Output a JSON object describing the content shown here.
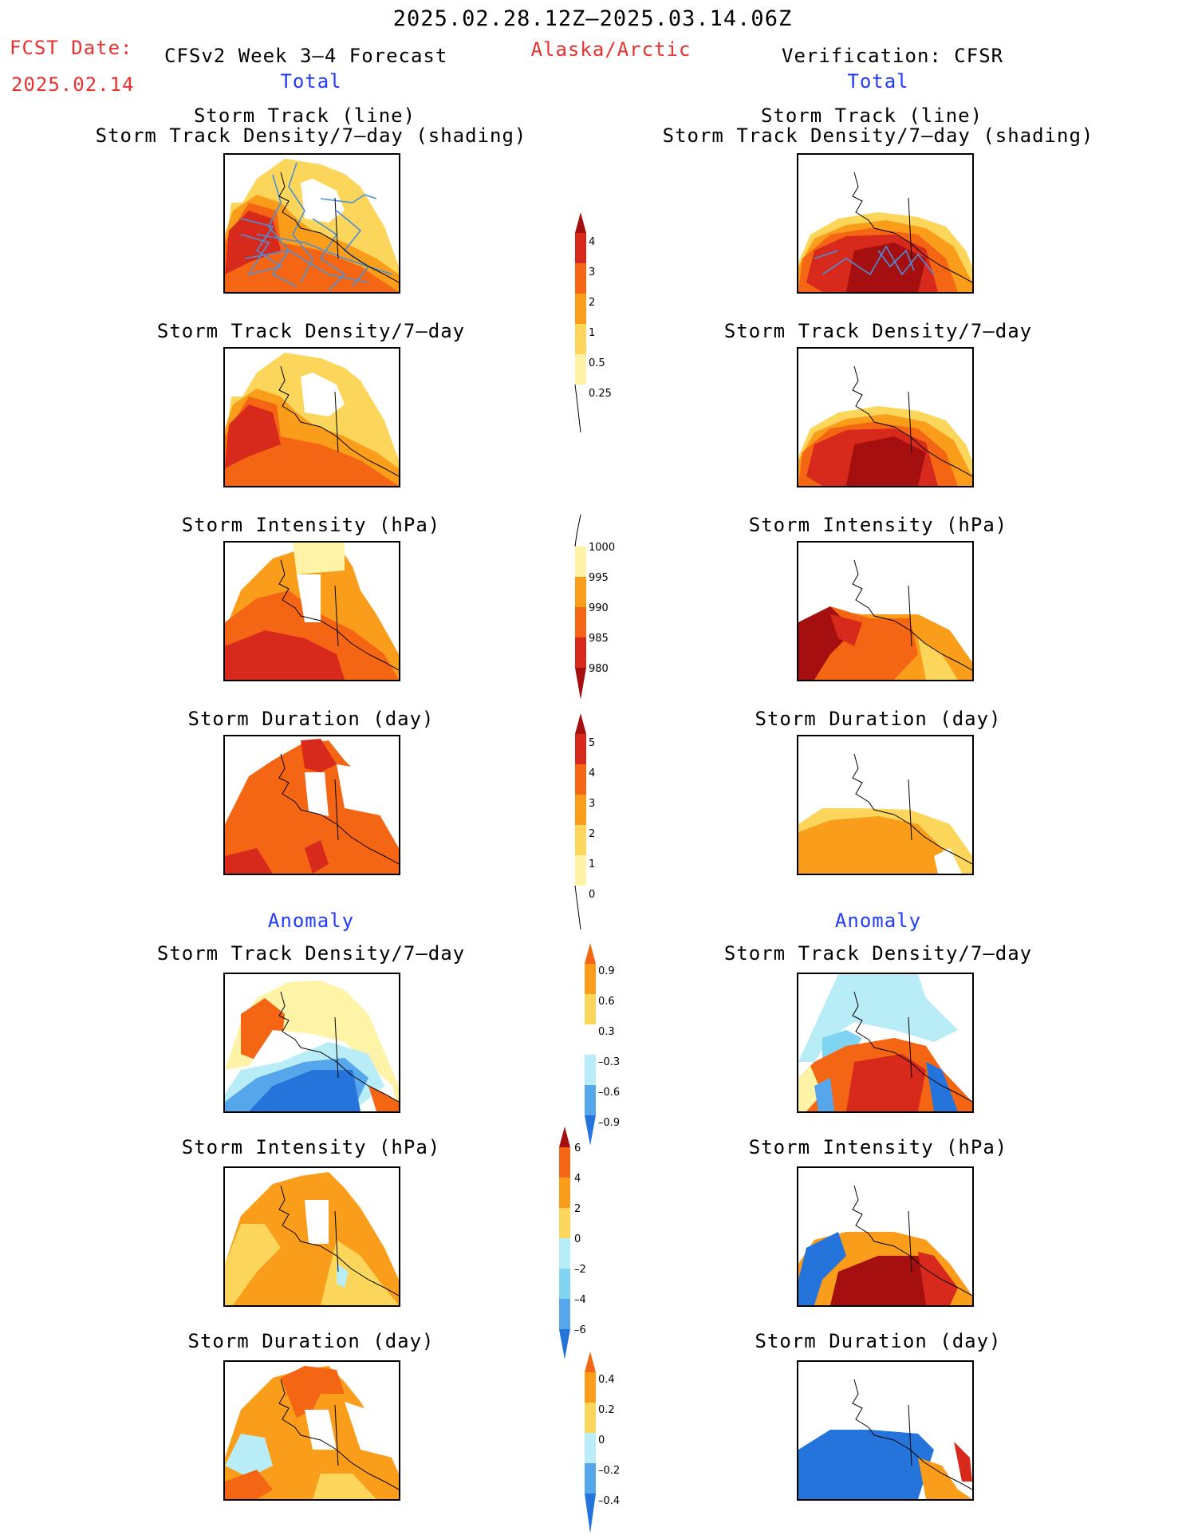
{
  "header": {
    "date_range": "2025.02.28.12Z–2025.03.14.06Z",
    "fcst_label": "FCST Date:",
    "fcst_date": "2025.02.14",
    "left_title": "CFSv2 Week 3–4 Forecast",
    "region": "Alaska/Arctic",
    "right_title": "Verification: CFSR",
    "left_total": "Total",
    "right_total": "Total"
  },
  "section_labels": {
    "anomaly_left": "Anomaly",
    "anomaly_right": "Anomaly"
  },
  "panels": {
    "track_line_1": "Storm Track (line)",
    "track_line_2": "Storm Track Density/7–day (shading)",
    "density": "Storm Track Density/7–day",
    "intensity": "Storm Intensity (hPa)",
    "duration": "Storm Duration (day)"
  },
  "colorbars": {
    "density": [
      "4",
      "3",
      "2",
      "1",
      "0.5",
      "0.25"
    ],
    "intensity": [
      "1000",
      "995",
      "990",
      "985",
      "980"
    ],
    "duration": [
      "5",
      "4",
      "3",
      "2",
      "1",
      "0"
    ],
    "anom_density": [
      "0.9",
      "0.6",
      "0.3",
      "–0.3",
      "–0.6",
      "–0.9"
    ],
    "anom_intensity": [
      "6",
      "4",
      "2",
      "0",
      "–2",
      "–4",
      "–6"
    ],
    "anom_duration": [
      "0.4",
      "0.2",
      "0",
      "–0.2",
      "–0.4"
    ]
  },
  "colors": {
    "pale": "#fff3a8",
    "light_yellow": "#fbd65a",
    "orange": "#f99d1a",
    "dark_orange": "#f56614",
    "red": "#d7291c",
    "dark_red": "#a50f0f",
    "cyan_light": "#b8ecf7",
    "cyan": "#7fd4f2",
    "blue_light": "#55a6ea",
    "blue": "#2574dc",
    "blue_dark": "#1554c2",
    "track_line": "#4a90d9"
  }
}
